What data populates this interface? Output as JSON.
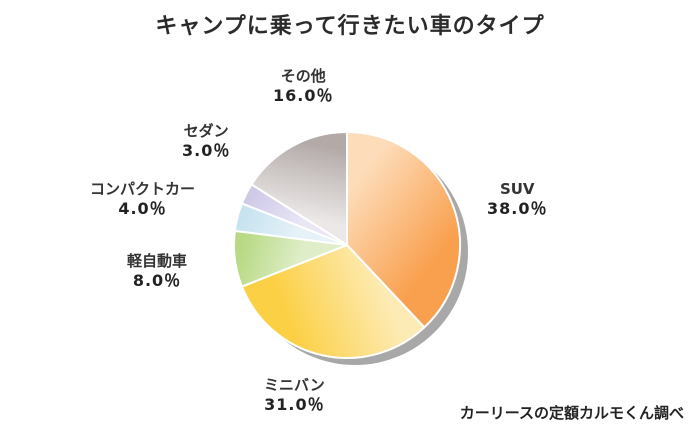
{
  "chart_data": {
    "type": "pie",
    "title": "キャンプに乗って行きたい車のタイプ",
    "slices": [
      {
        "name": "SUV",
        "value": 38.0,
        "label": "38.0％",
        "color": "#f9a04e",
        "color_light": "#fddcb9"
      },
      {
        "name": "ミニバン",
        "value": 31.0,
        "label": "31.0％",
        "color": "#fcd045",
        "color_light": "#fdebb5"
      },
      {
        "name": "軽自動車",
        "value": 8.0,
        "label": "8.0％",
        "color": "#b7d983",
        "color_light": "#dfeec9"
      },
      {
        "name": "コンパクトカー",
        "value": 4.0,
        "label": "4.0％",
        "color": "#c7e3f0",
        "color_light": "#e6f2f8"
      },
      {
        "name": "セダン",
        "value": 3.0,
        "label": "3.0％",
        "color": "#cfc9e8",
        "color_light": "#e9e6f5"
      },
      {
        "name": "その他",
        "value": 16.0,
        "label": "16.0％",
        "color": "#b3aaa8",
        "color_light": "#ebe8e7"
      }
    ],
    "start": "12 o'clock",
    "direction": "clockwise",
    "legend": "none"
  },
  "source": "カーリースの定額カルモくん調べ"
}
